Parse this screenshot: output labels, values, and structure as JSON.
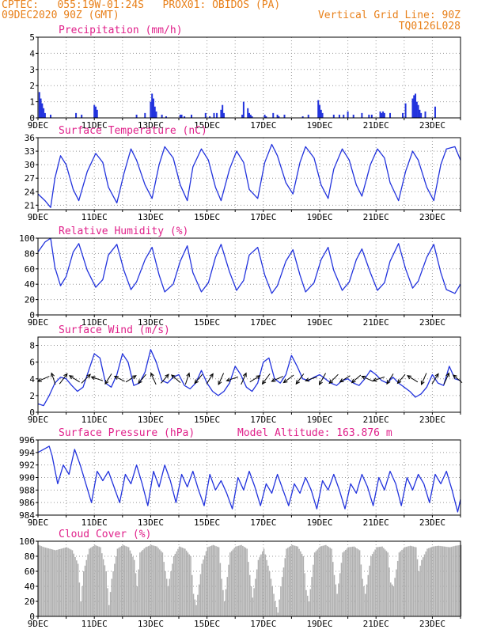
{
  "header": {
    "line1": "CPTEC:   055:19W-01:24S   PROX01: OBIDOS (PA)",
    "line2_left": "09DEC2020 90Z (GMT)",
    "line2_right": "Vertical Grid Line: 90Z",
    "line3_right": "TQ0126L028"
  },
  "colors": {
    "line": "#2233dd",
    "title": "#e0208a",
    "header": "#e8801a",
    "cloud": "#b0b0b0",
    "grid": "#999999"
  },
  "x_labels": [
    "9DEC",
    "11DEC",
    "13DEC",
    "15DEC",
    "17DEC",
    "19DEC",
    "21DEC",
    "23DEC"
  ],
  "chart_data": [
    {
      "id": "precip",
      "type": "bar",
      "title": "Precipitation (mm/h)",
      "xlabel": "",
      "ylabel": "",
      "ylim": [
        0,
        5
      ],
      "yticks": [
        0,
        1,
        2,
        3,
        4,
        5
      ],
      "xlim": [
        9,
        24
      ],
      "x": [
        9.05,
        9.1,
        9.15,
        9.2,
        9.25,
        9.45,
        10.35,
        10.55,
        11.0,
        11.05,
        11.1,
        12.5,
        12.8,
        13.0,
        13.05,
        13.1,
        13.15,
        13.2,
        13.4,
        13.55,
        14.05,
        14.1,
        14.2,
        14.45,
        14.95,
        15.1,
        15.25,
        15.35,
        15.5,
        15.55,
        15.6,
        16.25,
        16.3,
        16.45,
        16.5,
        16.55,
        16.6,
        17.05,
        17.1,
        17.35,
        17.5,
        17.55,
        17.75,
        18.4,
        18.6,
        18.95,
        19.0,
        19.05,
        19.1,
        19.5,
        19.7,
        19.85,
        20.0,
        20.2,
        20.5,
        20.75,
        20.85,
        21.15,
        21.2,
        21.25,
        21.3,
        21.5,
        21.95,
        22.05,
        22.3,
        22.35,
        22.4,
        22.45,
        22.5,
        22.55,
        22.6,
        22.75,
        23.1
      ],
      "values": [
        1.6,
        1.2,
        0.9,
        0.6,
        0.3,
        0.2,
        0.3,
        0.2,
        0.8,
        0.7,
        0.5,
        0.2,
        0.3,
        1.0,
        1.5,
        1.2,
        0.7,
        0.4,
        0.2,
        0.1,
        0.2,
        0.2,
        0.1,
        0.2,
        0.3,
        0.1,
        0.3,
        0.3,
        0.5,
        0.8,
        0.3,
        0.2,
        1.0,
        0.6,
        0.3,
        0.2,
        0.1,
        0.2,
        0.1,
        0.3,
        0.2,
        0.1,
        0.2,
        0.1,
        0.2,
        1.1,
        0.8,
        0.5,
        0.3,
        0.2,
        0.2,
        0.2,
        0.4,
        0.2,
        0.3,
        0.2,
        0.2,
        0.4,
        0.3,
        0.4,
        0.3,
        0.3,
        0.3,
        0.9,
        1.2,
        1.4,
        1.5,
        1.0,
        0.8,
        0.5,
        0.3,
        0.4,
        0.7
      ]
    },
    {
      "id": "temp",
      "type": "line",
      "title": "Surface Temperature (nC)",
      "xlabel": "",
      "ylabel": "",
      "ylim": [
        20,
        36
      ],
      "yticks": [
        21,
        24,
        27,
        30,
        33,
        36
      ],
      "xlim": [
        9,
        24
      ],
      "x": [
        9.0,
        9.25,
        9.45,
        9.6,
        9.8,
        10.0,
        10.25,
        10.45,
        10.75,
        11.05,
        11.3,
        11.5,
        11.8,
        12.05,
        12.3,
        12.5,
        12.8,
        13.05,
        13.3,
        13.5,
        13.8,
        14.05,
        14.3,
        14.5,
        14.8,
        15.05,
        15.3,
        15.5,
        15.8,
        16.05,
        16.3,
        16.5,
        16.8,
        17.05,
        17.3,
        17.5,
        17.8,
        18.05,
        18.3,
        18.5,
        18.8,
        19.05,
        19.3,
        19.5,
        19.8,
        20.05,
        20.3,
        20.5,
        20.8,
        21.05,
        21.3,
        21.5,
        21.8,
        22.05,
        22.3,
        22.5,
        22.8,
        23.05,
        23.3,
        23.5,
        23.8,
        24.0
      ],
      "values": [
        23.5,
        22.0,
        20.5,
        27.0,
        32.0,
        30.0,
        24.5,
        22.0,
        28.5,
        32.5,
        30.5,
        25.0,
        21.5,
        28.0,
        33.5,
        31.0,
        25.5,
        22.5,
        30.0,
        34.0,
        31.5,
        25.5,
        22.0,
        29.5,
        33.5,
        31.0,
        25.0,
        22.0,
        29.0,
        33.0,
        30.5,
        24.5,
        22.5,
        30.5,
        34.5,
        32.0,
        26.0,
        23.5,
        30.5,
        34.0,
        31.5,
        25.5,
        22.5,
        29.0,
        33.5,
        31.0,
        25.5,
        23.0,
        30.0,
        33.5,
        31.5,
        26.0,
        22.0,
        28.5,
        33.0,
        31.0,
        25.0,
        22.0,
        30.0,
        33.5,
        34.0,
        31.0
      ]
    },
    {
      "id": "rh",
      "type": "line",
      "title": "Relative Humidity (%)",
      "xlabel": "",
      "ylabel": "",
      "ylim": [
        0,
        100
      ],
      "yticks": [
        0,
        20,
        40,
        60,
        80,
        100
      ],
      "xlim": [
        9,
        24
      ],
      "x": [
        9.0,
        9.25,
        9.45,
        9.6,
        9.8,
        10.0,
        10.25,
        10.45,
        10.75,
        11.05,
        11.3,
        11.5,
        11.8,
        12.05,
        12.3,
        12.5,
        12.8,
        13.05,
        13.3,
        13.5,
        13.8,
        14.05,
        14.3,
        14.5,
        14.8,
        15.05,
        15.3,
        15.5,
        15.8,
        16.05,
        16.3,
        16.5,
        16.8,
        17.05,
        17.3,
        17.5,
        17.8,
        18.05,
        18.3,
        18.5,
        18.8,
        19.05,
        19.3,
        19.5,
        19.8,
        20.05,
        20.3,
        20.5,
        20.8,
        21.05,
        21.3,
        21.5,
        21.8,
        22.05,
        22.3,
        22.5,
        22.8,
        23.05,
        23.3,
        23.5,
        23.8,
        24.0
      ],
      "values": [
        82,
        95,
        100,
        62,
        38,
        50,
        82,
        93,
        58,
        36,
        46,
        78,
        92,
        58,
        33,
        43,
        72,
        88,
        52,
        30,
        40,
        70,
        90,
        55,
        30,
        42,
        75,
        92,
        56,
        32,
        45,
        78,
        88,
        52,
        28,
        38,
        70,
        85,
        52,
        30,
        42,
        72,
        88,
        58,
        32,
        43,
        72,
        86,
        55,
        32,
        42,
        70,
        93,
        60,
        35,
        44,
        75,
        92,
        55,
        33,
        28,
        40
      ]
    },
    {
      "id": "wind",
      "type": "line",
      "title": "Surface Wind (m/s)",
      "xlabel": "",
      "ylabel": "",
      "ylim": [
        0,
        9
      ],
      "yticks": [
        0,
        2,
        4,
        6,
        8
      ],
      "xlim": [
        9,
        24
      ],
      "x": [
        9.0,
        9.2,
        9.4,
        9.6,
        9.8,
        10.0,
        10.2,
        10.4,
        10.6,
        10.8,
        11.0,
        11.2,
        11.4,
        11.6,
        11.8,
        12.0,
        12.2,
        12.4,
        12.6,
        12.8,
        13.0,
        13.2,
        13.4,
        13.6,
        13.8,
        14.0,
        14.2,
        14.4,
        14.6,
        14.8,
        15.0,
        15.2,
        15.4,
        15.6,
        15.8,
        16.0,
        16.2,
        16.4,
        16.6,
        16.8,
        17.0,
        17.2,
        17.4,
        17.6,
        17.8,
        18.0,
        18.2,
        18.4,
        18.6,
        18.8,
        19.0,
        19.2,
        19.4,
        19.6,
        19.8,
        20.0,
        20.2,
        20.4,
        20.6,
        20.8,
        21.0,
        21.2,
        21.4,
        21.6,
        21.8,
        22.0,
        22.2,
        22.4,
        22.6,
        22.8,
        23.0,
        23.2,
        23.4,
        23.6,
        23.8,
        24.0
      ],
      "values": [
        1.0,
        0.8,
        2.0,
        3.5,
        4.2,
        4.0,
        3.2,
        2.5,
        3.0,
        5.0,
        7.0,
        6.5,
        3.5,
        3.0,
        4.5,
        7.0,
        6.0,
        3.2,
        3.5,
        4.8,
        7.5,
        6.0,
        3.8,
        3.5,
        4.2,
        4.5,
        3.2,
        2.8,
        3.5,
        5.0,
        3.5,
        2.5,
        2.0,
        2.5,
        3.5,
        5.5,
        4.5,
        3.0,
        2.5,
        3.5,
        6.0,
        6.5,
        4.0,
        3.5,
        4.5,
        6.8,
        5.5,
        4.0,
        3.8,
        4.2,
        4.5,
        4.0,
        3.5,
        3.2,
        3.8,
        4.0,
        3.5,
        3.2,
        4.0,
        5.0,
        4.5,
        3.8,
        3.5,
        4.2,
        3.5,
        3.0,
        2.5,
        1.8,
        2.2,
        3.0,
        4.5,
        3.5,
        3.2,
        5.5,
        4.0,
        3.8
      ]
    },
    {
      "id": "pres",
      "type": "line",
      "title": "Surface Pressure (hPa)",
      "annotation": "Model Altitude: 163.876 m",
      "xlabel": "",
      "ylabel": "",
      "ylim": [
        984,
        996
      ],
      "yticks": [
        984,
        986,
        988,
        990,
        992,
        994,
        996
      ],
      "xlim": [
        9,
        24
      ],
      "x": [
        9.0,
        9.2,
        9.4,
        9.5,
        9.7,
        9.9,
        10.1,
        10.3,
        10.5,
        10.7,
        10.9,
        11.1,
        11.3,
        11.5,
        11.7,
        11.9,
        12.1,
        12.3,
        12.5,
        12.7,
        12.9,
        13.1,
        13.3,
        13.5,
        13.7,
        13.9,
        14.1,
        14.3,
        14.5,
        14.7,
        14.9,
        15.1,
        15.3,
        15.5,
        15.7,
        15.9,
        16.1,
        16.3,
        16.5,
        16.7,
        16.9,
        17.1,
        17.3,
        17.5,
        17.7,
        17.9,
        18.1,
        18.3,
        18.5,
        18.7,
        18.9,
        19.1,
        19.3,
        19.5,
        19.7,
        19.9,
        20.1,
        20.3,
        20.5,
        20.7,
        20.9,
        21.1,
        21.3,
        21.5,
        21.7,
        21.9,
        22.1,
        22.3,
        22.5,
        22.7,
        22.9,
        23.1,
        23.3,
        23.5,
        23.7,
        23.9,
        24.0
      ],
      "values": [
        994,
        994.5,
        995,
        993.5,
        989,
        992,
        990.5,
        994.5,
        992,
        989,
        986,
        991,
        989.5,
        991,
        988.5,
        986,
        990.5,
        989,
        992,
        989,
        985.5,
        991,
        988.5,
        992,
        989.5,
        986,
        990.5,
        988.5,
        991,
        988,
        985.5,
        990.5,
        988,
        989.5,
        987.5,
        985,
        990,
        988,
        991,
        988.5,
        985.5,
        989,
        987.5,
        990.5,
        988,
        985.5,
        989,
        987.5,
        990,
        988,
        985,
        989.5,
        988,
        990.5,
        988,
        985,
        989,
        987.5,
        990.5,
        988.5,
        985.5,
        990,
        988,
        991,
        989,
        985.5,
        990,
        988,
        990.5,
        989,
        986,
        990.5,
        989,
        991,
        988,
        984.5,
        986.5
      ]
    },
    {
      "id": "cloud",
      "type": "area",
      "title": "Cloud Cover (%)",
      "xlabel": "",
      "ylabel": "",
      "ylim": [
        0,
        100
      ],
      "yticks": [
        0,
        20,
        40,
        60,
        80,
        100
      ],
      "xlim": [
        9,
        24
      ],
      "x": [
        9.0,
        9.2,
        9.4,
        9.6,
        9.8,
        10.0,
        10.2,
        10.4,
        10.5,
        10.6,
        10.8,
        11.0,
        11.2,
        11.4,
        11.5,
        11.6,
        11.8,
        12.0,
        12.2,
        12.4,
        12.5,
        12.6,
        12.8,
        13.0,
        13.2,
        13.4,
        13.5,
        13.6,
        13.8,
        14.0,
        14.2,
        14.4,
        14.5,
        14.6,
        14.8,
        15.0,
        15.2,
        15.4,
        15.5,
        15.6,
        15.8,
        16.0,
        16.2,
        16.4,
        16.5,
        16.6,
        16.8,
        17.0,
        17.2,
        17.4,
        17.5,
        17.6,
        17.8,
        18.0,
        18.2,
        18.4,
        18.5,
        18.6,
        18.8,
        19.0,
        19.2,
        19.4,
        19.5,
        19.6,
        19.8,
        20.0,
        20.2,
        20.4,
        20.5,
        20.6,
        20.8,
        21.0,
        21.2,
        21.4,
        21.5,
        21.6,
        21.8,
        22.0,
        22.2,
        22.4,
        22.5,
        22.6,
        22.8,
        23.0,
        23.2,
        23.4,
        23.6,
        23.8,
        24.0
      ],
      "values": [
        95,
        92,
        90,
        88,
        90,
        92,
        88,
        70,
        20,
        60,
        90,
        95,
        92,
        60,
        15,
        50,
        90,
        95,
        92,
        75,
        40,
        85,
        92,
        95,
        93,
        85,
        60,
        40,
        80,
        93,
        90,
        80,
        30,
        15,
        70,
        92,
        95,
        92,
        50,
        20,
        85,
        93,
        95,
        90,
        55,
        25,
        75,
        90,
        60,
        20,
        5,
        40,
        90,
        95,
        93,
        80,
        35,
        20,
        85,
        93,
        95,
        90,
        55,
        30,
        85,
        92,
        93,
        88,
        50,
        30,
        80,
        92,
        93,
        85,
        45,
        40,
        85,
        92,
        94,
        92,
        60,
        75,
        90,
        93,
        94,
        93,
        92,
        94,
        95
      ]
    }
  ],
  "wind_vectors": {
    "x": [
      9.2,
      9.55,
      9.9,
      10.3,
      10.7,
      11.1,
      11.5,
      11.9,
      12.3,
      12.7,
      13.1,
      13.5,
      13.9,
      14.3,
      14.7,
      15.1,
      15.5,
      15.9,
      16.3,
      16.7,
      17.1,
      17.5,
      17.9,
      18.3,
      18.7,
      19.1,
      19.5,
      19.9,
      20.3,
      20.7,
      21.1,
      21.5,
      21.9,
      22.3,
      22.7,
      23.1,
      23.5,
      23.9
    ],
    "u": [
      -0.9,
      -0.3,
      0.6,
      -0.8,
      0.7,
      -0.9,
      -0.5,
      -0.8,
      0.8,
      -0.6,
      -0.4,
      0.6,
      -0.7,
      0.3,
      -0.6,
      0.5,
      -0.4,
      -0.9,
      0.4,
      0.8,
      -0.6,
      -0.9,
      -0.8,
      -0.6,
      -0.9,
      -0.5,
      -0.7,
      -0.8,
      -0.7,
      -0.9,
      -0.9,
      -0.5,
      -0.6,
      -0.8,
      -0.4,
      0.5,
      0.4,
      -0.7
    ],
    "v": [
      -0.4,
      0.9,
      0.8,
      0.5,
      0.7,
      0.3,
      -0.8,
      0.4,
      0.5,
      -0.7,
      0.9,
      0.7,
      0.6,
      0.9,
      -0.7,
      0.8,
      -0.9,
      -0.3,
      0.9,
      0.5,
      -0.8,
      -0.4,
      -0.6,
      -0.8,
      -0.3,
      -0.9,
      -0.7,
      -0.5,
      -0.6,
      0.4,
      -0.3,
      -0.8,
      -0.7,
      0.5,
      -0.9,
      0.8,
      0.9,
      0.6
    ]
  }
}
